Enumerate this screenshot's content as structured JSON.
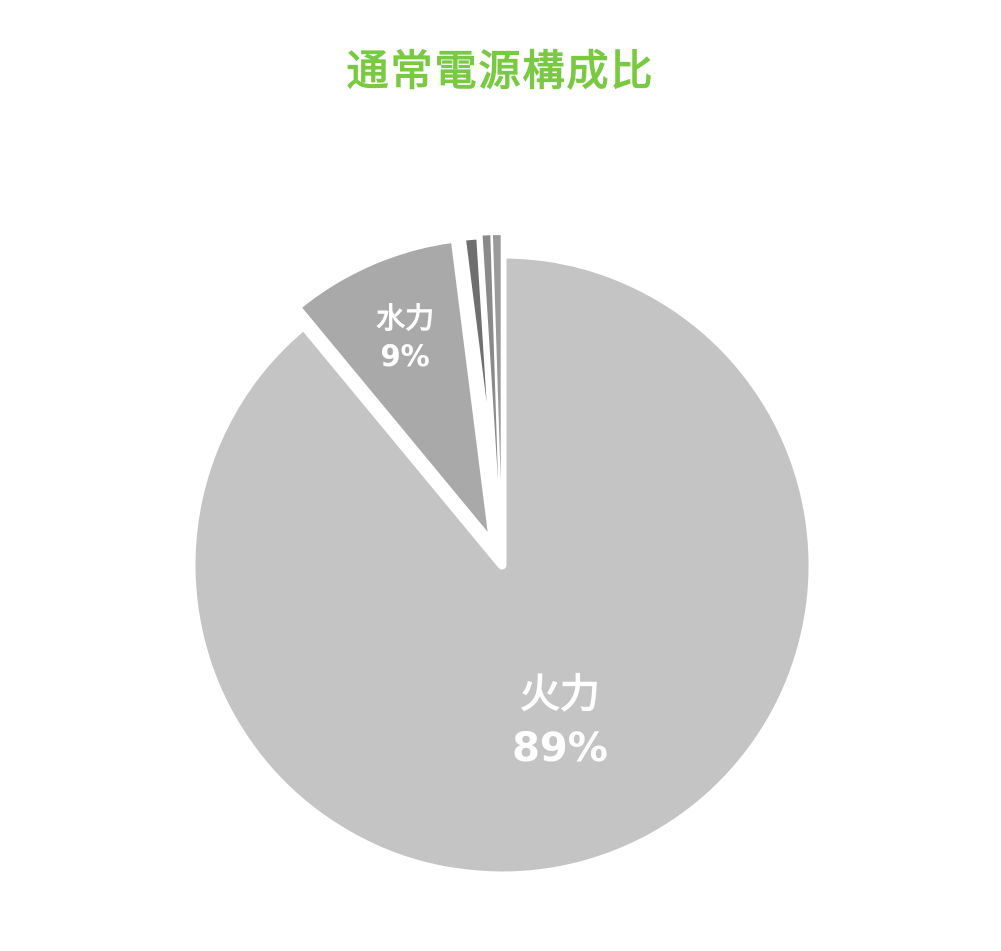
{
  "chart_data": {
    "type": "pie",
    "title": "通常電源構成比",
    "start_angle_deg": 0,
    "direction": "clockwise",
    "slices": [
      {
        "label": "火力",
        "value": 89,
        "value_label": "89%",
        "color": "#c4c4c4",
        "exploded": false
      },
      {
        "label": "水力",
        "value": 9,
        "value_label": "9%",
        "color": "#a9a9a9",
        "exploded": true
      },
      {
        "label": "",
        "value": 1,
        "value_label": "",
        "color": "#6f6f6f",
        "exploded": true
      },
      {
        "label": "",
        "value": 0.5,
        "value_label": "",
        "color": "#8a8a8a",
        "exploded": true
      },
      {
        "label": "",
        "value": 0.5,
        "value_label": "",
        "color": "#9a9a9a",
        "exploded": true
      }
    ]
  },
  "colors": {
    "title": "#7ac943",
    "label_text": "#ffffff",
    "slice_border": "#ffffff"
  }
}
